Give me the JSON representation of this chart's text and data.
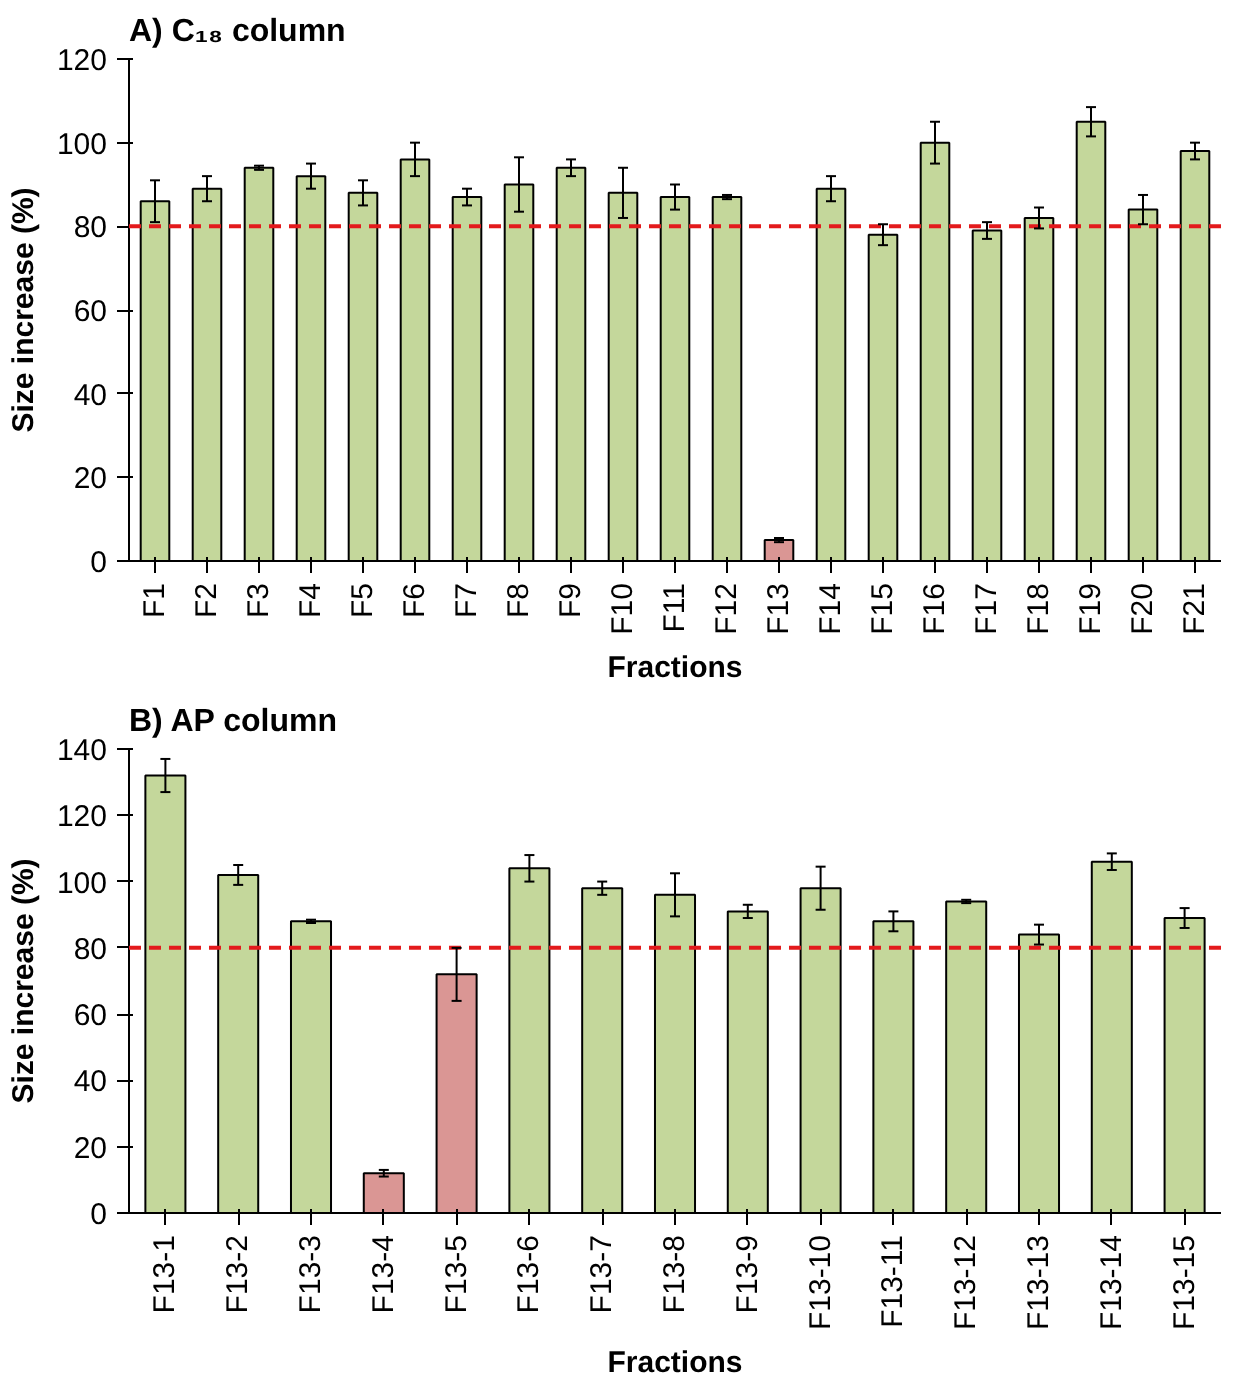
{
  "chart_data": [
    {
      "type": "bar",
      "title": "A) C₁₈ column",
      "xlabel": "Fractions",
      "ylabel": "Size increase (%)",
      "categories": [
        "F1",
        "F2",
        "F3",
        "F4",
        "F5",
        "F6",
        "F7",
        "F8",
        "F9",
        "F10",
        "F11",
        "F12",
        "F13",
        "F14",
        "F15",
        "F16",
        "F17",
        "F18",
        "F19",
        "F20",
        "F21"
      ],
      "values": [
        86,
        89,
        94,
        92,
        88,
        96,
        87,
        90,
        94,
        88,
        87,
        87,
        5,
        89,
        78,
        100,
        79,
        82,
        105,
        84,
        98
      ],
      "errors": [
        5,
        3,
        0.5,
        3,
        3,
        4,
        2,
        6.5,
        2,
        6,
        3,
        0.5,
        0.5,
        3,
        2.5,
        5,
        2,
        2.5,
        3.5,
        3.5,
        2
      ],
      "colors": [
        "#c4d79b",
        "#c4d79b",
        "#c4d79b",
        "#c4d79b",
        "#c4d79b",
        "#c4d79b",
        "#c4d79b",
        "#c4d79b",
        "#c4d79b",
        "#c4d79b",
        "#c4d79b",
        "#c4d79b",
        "#da9694",
        "#c4d79b",
        "#c4d79b",
        "#c4d79b",
        "#c4d79b",
        "#c4d79b",
        "#c4d79b",
        "#c4d79b",
        "#c4d79b"
      ],
      "ylim": [
        0,
        120
      ],
      "yticks": [
        0,
        20,
        40,
        60,
        80,
        100,
        120
      ],
      "grid": false,
      "ref_lines": [
        {
          "axis": "y",
          "value": 80,
          "label": null,
          "color": "#e31a1c",
          "line_style": "dashed"
        }
      ]
    },
    {
      "type": "bar",
      "title": "B) AP column",
      "xlabel": "Fractions",
      "ylabel": "Size increase (%)",
      "categories": [
        "F13-1",
        "F13-2",
        "F13-3",
        "F13-4",
        "F13-5",
        "F13-6",
        "F13-7",
        "F13-8",
        "F13-9",
        "F13-10",
        "F13-11",
        "F13-12",
        "F13-13",
        "F13-14",
        "F13-15"
      ],
      "values": [
        132,
        102,
        88,
        12,
        72,
        104,
        98,
        96,
        91,
        98,
        88,
        94,
        84,
        106,
        89
      ],
      "errors": [
        5,
        3,
        0.5,
        1,
        8,
        4,
        2,
        6.5,
        2,
        6.5,
        3,
        0.5,
        3,
        2.5,
        3
      ],
      "colors": [
        "#c4d79b",
        "#c4d79b",
        "#c4d79b",
        "#da9694",
        "#da9694",
        "#c4d79b",
        "#c4d79b",
        "#c4d79b",
        "#c4d79b",
        "#c4d79b",
        "#c4d79b",
        "#c4d79b",
        "#c4d79b",
        "#c4d79b",
        "#c4d79b"
      ],
      "ylim": [
        0,
        140
      ],
      "yticks": [
        0,
        20,
        40,
        60,
        80,
        100,
        120,
        140
      ],
      "grid": false,
      "ref_lines": [
        {
          "axis": "y",
          "value": 80,
          "label": null,
          "color": "#e31a1c",
          "line_style": "dashed"
        }
      ]
    }
  ]
}
